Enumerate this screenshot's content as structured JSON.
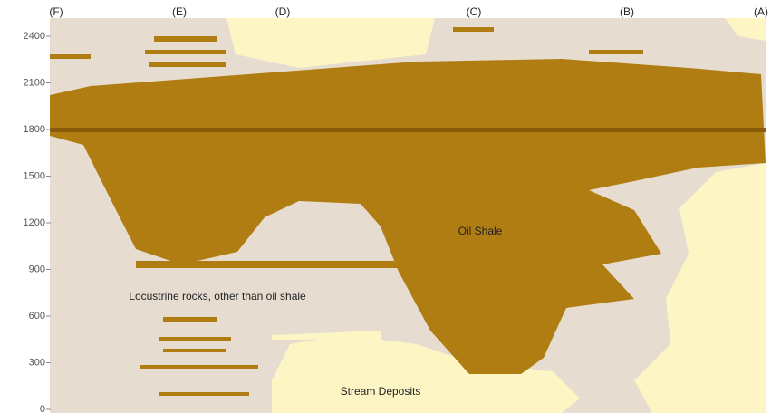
{
  "axis": {
    "ticks": [
      0,
      300,
      600,
      900,
      1200,
      1500,
      1800,
      2100,
      2400
    ]
  },
  "columns": [
    "(F)",
    "(E)",
    "(D)",
    "(C)",
    "(B)",
    "(A)"
  ],
  "regions": {
    "oil_shale": "Oil Shale",
    "lacustrine": "Locustrine rocks, other than oil shale",
    "stream": "Stream Deposits"
  }
}
